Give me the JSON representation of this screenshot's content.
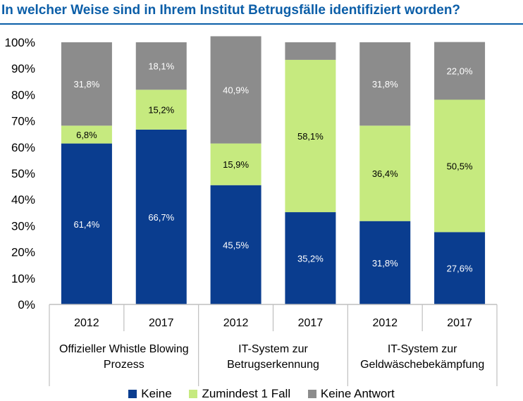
{
  "page": {
    "title": "In welcher Weise sind in Ihrem Institut Betrugsfälle identifiziert worden?"
  },
  "colors": {
    "keine": "#0a3d8f",
    "zumindest": "#c6ea7f",
    "antwort": "#8c8c8c",
    "title": "#0b5ea8"
  },
  "chart_data": {
    "type": "bar",
    "stacked": true,
    "percent": true,
    "ylim": [
      0,
      100
    ],
    "yticks": [
      "0%",
      "10%",
      "20%",
      "30%",
      "40%",
      "50%",
      "60%",
      "70%",
      "80%",
      "90%",
      "100%"
    ],
    "categories": [
      "2012",
      "2017",
      "2012",
      "2017",
      "2012",
      "2017"
    ],
    "groups": [
      {
        "label_lines": [
          "Offizieller Whistle Blowing",
          "Prozess"
        ],
        "span": [
          0,
          1
        ]
      },
      {
        "label_lines": [
          "IT-System zur",
          "Betrugserkennung"
        ],
        "span": [
          2,
          3
        ]
      },
      {
        "label_lines": [
          "IT-System zur",
          "Geldwäschebekämpfung"
        ],
        "span": [
          4,
          5
        ]
      }
    ],
    "series": [
      {
        "name": "Keine",
        "color": "#0a3d8f",
        "values": [
          61.4,
          66.7,
          45.5,
          35.2,
          31.8,
          27.6
        ],
        "labels": [
          "61,4%",
          "66,7%",
          "45,5%",
          "35,2%",
          "31,8%",
          "27,6%"
        ]
      },
      {
        "name": "Zumindest 1 Fall",
        "color": "#c6ea7f",
        "values": [
          6.8,
          15.2,
          15.9,
          58.1,
          36.4,
          50.5
        ],
        "labels": [
          "6,8%",
          "15,2%",
          "15,9%",
          "58,1%",
          "36,4%",
          "50,5%"
        ]
      },
      {
        "name": "Keine Antwort",
        "color": "#8c8c8c",
        "values": [
          31.8,
          18.1,
          40.9,
          6.7,
          31.8,
          22.0
        ],
        "labels": [
          "31,8%",
          "18,1%",
          "40,9%",
          "",
          "31,8%",
          "22,0%"
        ]
      }
    ],
    "legend_position": "bottom",
    "grid": false
  }
}
